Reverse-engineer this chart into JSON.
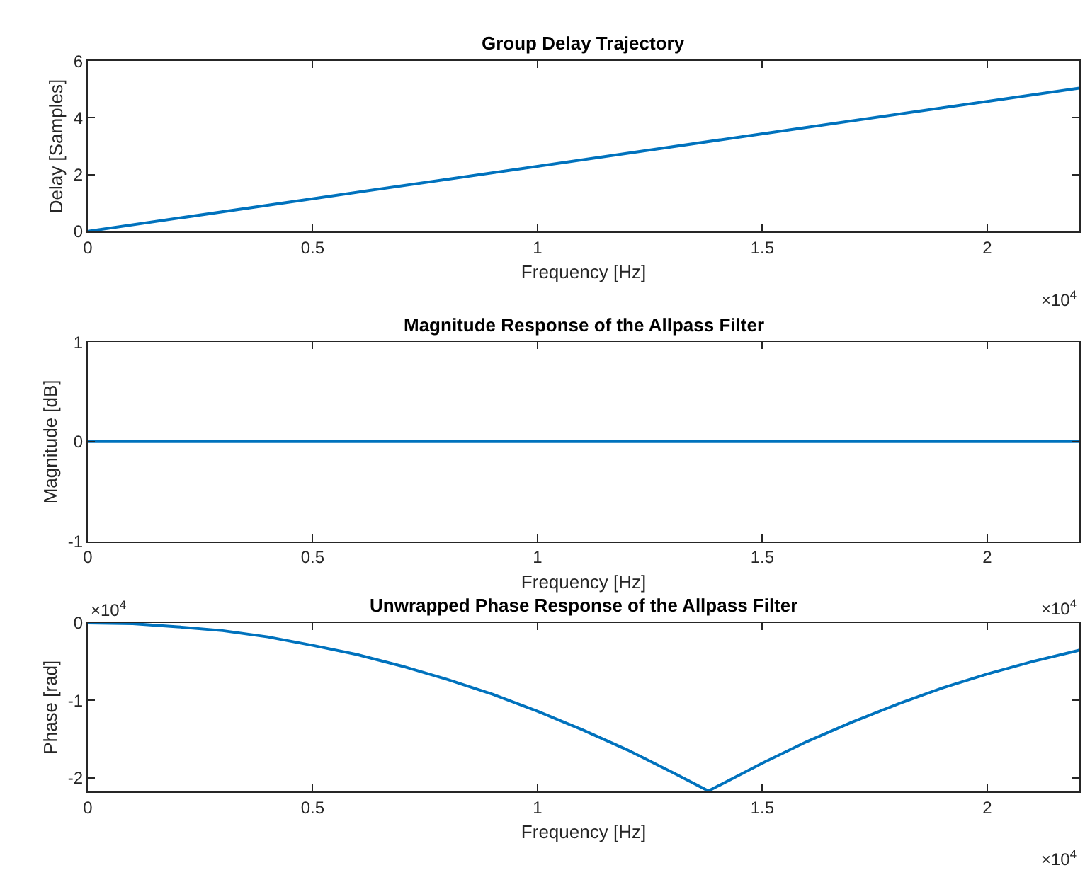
{
  "chart_data": [
    {
      "type": "line",
      "title": "Group Delay Trajectory",
      "xlabel": "Frequency [Hz]",
      "ylabel": "Delay [Samples]",
      "annotations": [
        "×10$^{4}$"
      ],
      "xlim": [
        0,
        2.205
      ],
      "xticks": [
        0,
        0.5,
        1,
        1.5,
        2
      ],
      "ylim": [
        0,
        6
      ],
      "yticks": [
        0,
        2,
        4,
        6
      ],
      "series": [
        {
          "color": "#0072bd",
          "x": [
            0,
            0.5,
            1,
            1.5,
            2,
            2.205
          ],
          "values": [
            0,
            1.15,
            2.29,
            3.44,
            4.58,
            5.05
          ]
        }
      ]
    },
    {
      "type": "line",
      "title": "Magnitude Response of the Allpass Filter",
      "xlabel": "Frequency [Hz]",
      "ylabel": "Magnitude [dB]",
      "annotations": [
        "×10$^{4}$"
      ],
      "xlim": [
        0,
        2.205
      ],
      "xticks": [
        0,
        0.5,
        1,
        1.5,
        2
      ],
      "ylim": [
        -1,
        1
      ],
      "yticks": [
        -1,
        0,
        1
      ],
      "series": [
        {
          "color": "#0072bd",
          "x": [
            0,
            2.205
          ],
          "values": [
            0,
            0
          ]
        }
      ]
    },
    {
      "type": "line",
      "title": "Unwrapped Phase Response of the Allpass Filter",
      "xlabel": "Frequency [Hz]",
      "ylabel": "Phase [rad]",
      "annotations": [
        "×10$^{4}$",
        "×10$^{4}$"
      ],
      "xlim": [
        0,
        2.205
      ],
      "xticks": [
        0,
        0.5,
        1,
        1.5,
        2
      ],
      "ylim": [
        -2.18,
        0
      ],
      "yticks": [
        -2,
        -1,
        0
      ],
      "series": [
        {
          "color": "#0072bd",
          "x": [
            0,
            0.1,
            0.2,
            0.3,
            0.4,
            0.5,
            0.6,
            0.7,
            0.8,
            0.9,
            1.0,
            1.1,
            1.2,
            1.3,
            1.38,
            1.4,
            1.5,
            1.6,
            1.7,
            1.8,
            1.9,
            2.0,
            2.1,
            2.2,
            2.205
          ],
          "values": [
            0,
            -0.01,
            -0.05,
            -0.1,
            -0.18,
            -0.29,
            -0.41,
            -0.56,
            -0.73,
            -0.92,
            -1.14,
            -1.38,
            -1.64,
            -1.93,
            -2.17,
            -2.11,
            -1.81,
            -1.53,
            -1.28,
            -1.05,
            -0.84,
            -0.66,
            -0.5,
            -0.36,
            -0.35
          ]
        }
      ]
    }
  ]
}
